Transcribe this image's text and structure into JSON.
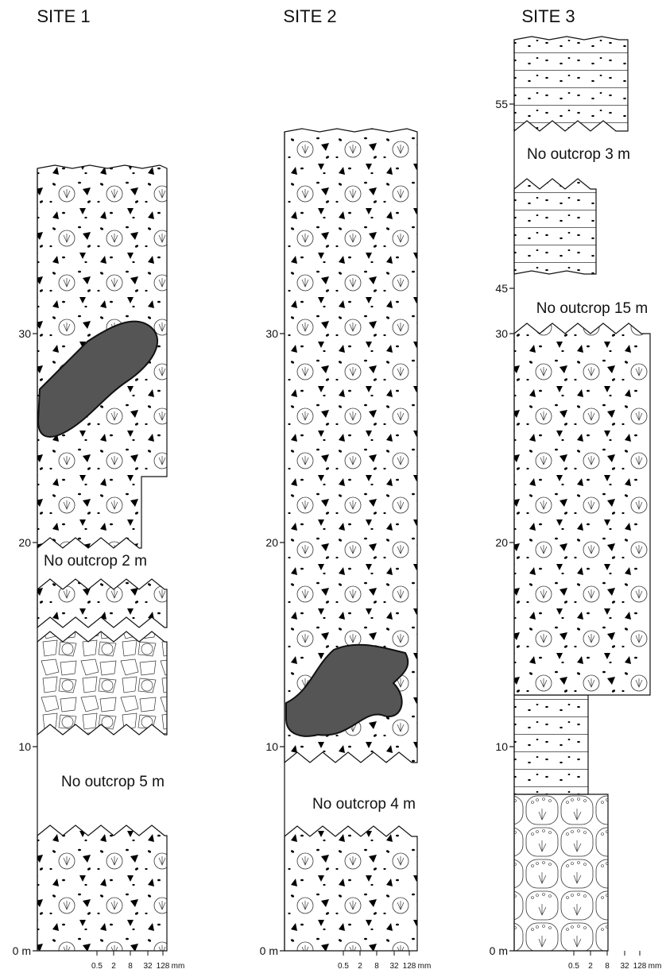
{
  "sites": [
    {
      "title": "SITE 1",
      "scale": [
        "0 m",
        "10",
        "20",
        "30"
      ],
      "gaps": [
        "No outcrop 2 m",
        "No outcrop 5 m"
      ],
      "grain_scale": [
        "0.5",
        "2",
        "8",
        "32",
        "128",
        "mm"
      ]
    },
    {
      "title": "SITE 2",
      "scale": [
        "0 m",
        "10",
        "20",
        "30"
      ],
      "gaps": [
        "No outcrop 4 m"
      ],
      "grain_scale": [
        "0.5",
        "2",
        "8",
        "32",
        "128",
        "mm"
      ]
    },
    {
      "title": "SITE 3",
      "scale": [
        "0 m",
        "10",
        "20",
        "30",
        "45",
        "55"
      ],
      "gaps": [
        "No outcrop 3 m",
        "No outcrop 15 m"
      ],
      "grain_scale": [
        "0.5",
        "2",
        "8",
        "32",
        "128",
        "mm"
      ]
    }
  ]
}
